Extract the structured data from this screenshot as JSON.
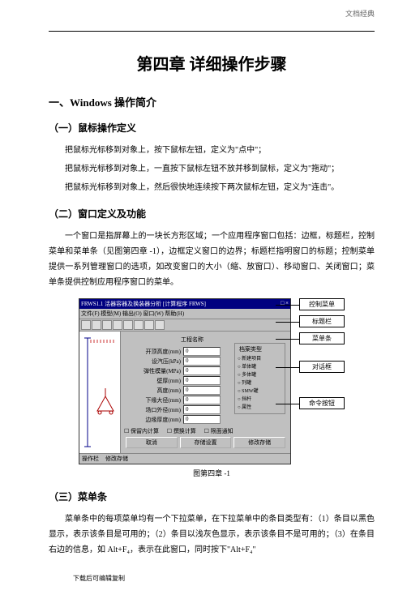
{
  "header": {
    "label": "文档经典"
  },
  "chapter": {
    "title": "第四章  详细操作步骤"
  },
  "section1": {
    "title": "一、Windows  操作简介"
  },
  "sub1": {
    "title": "（一）鼠标操作定义",
    "p1": "把鼠标光标移到对象上，按下鼠标左钮，定义为\"点中\"；",
    "p2": "把鼠标光标移到对象上，一直按下鼠标左钮不放并移到鼠标，定义为\"拖动\"；",
    "p3": "把鼠标光标移到对象上，然后很快地连续按下两次鼠标左钮，定义为\"连击\"。"
  },
  "sub2": {
    "title": "（二）窗口定义及功能",
    "p1": "一个窗口是指屏幕上的一块长方形区域；一个应用程序窗口包括：边框，标题栏，控制菜单和菜单条（见图第四章  -1），边框定义窗口的边界；标题栏指明窗口的标题；控制菜单提供一系列管理窗口的选项，如改变窗口的大小（缩、放窗口）、移动窗口、关闭窗口；菜单条提供控制应用程序窗口的菜单。"
  },
  "figure": {
    "caption": "图第四章  -1",
    "window": {
      "title": "FRWS1.1 活器容器及换装器分析 [计算程序 FRWS]",
      "menubar": "文件(F)  模型(M)  输出(O)  窗口(W)  帮助(H)",
      "header_col": "工程名称",
      "fields": [
        {
          "label": "开顶高度(mm)",
          "value": "0"
        },
        {
          "label": "设汽压(kPa)",
          "value": "0"
        },
        {
          "label": "弹性模量(MPa)",
          "value": "0"
        },
        {
          "label": "壁厚(mm)",
          "value": "0"
        },
        {
          "label": "高度(mm)",
          "value": "0"
        },
        {
          "label": "下缘大径(mm)",
          "value": "0"
        },
        {
          "label": "场口外径(mm)",
          "value": "0"
        },
        {
          "label": "边缘厚度(mm)",
          "value": "0"
        }
      ],
      "groupbox_title": "档案类型",
      "radios": [
        "新建项目",
        "单体罐",
        "多体罐",
        "列罐",
        "SMW罐",
        "挡杆",
        "属性"
      ],
      "check1": "保留内计算",
      "check2": "撰换计算",
      "check3": "限面通知",
      "buttons": [
        "取消",
        "存储设置",
        "修改存储"
      ],
      "status1": "操作栏",
      "status2": "修改存储"
    },
    "callouts": [
      "控制菜单",
      "标题栏",
      "菜单条",
      "对话框",
      "命令按钮"
    ]
  },
  "sub3": {
    "title": "（三）菜单条",
    "p1": "菜单条中的每项菜单均有一个下拉菜单，在下拉菜单中的条目类型有：（1）条目以黑色显示，表示该条目是可用的；（2）条目以浅灰色显示，表示该条目不是可用的；（3）在条目右边的信息，如 Alt+F₄，表示在此窗口，同时按下\"Alt+F₄\""
  },
  "footer": {
    "text": "下载后可编辑复制"
  }
}
